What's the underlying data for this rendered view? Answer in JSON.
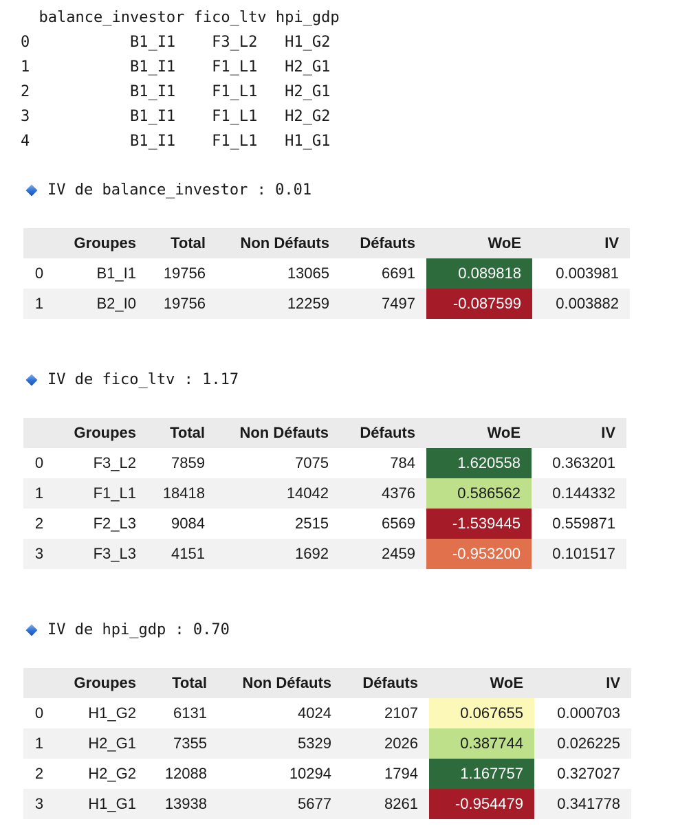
{
  "df_head": {
    "columns": [
      "balance_investor",
      "fico_ltv",
      "hpi_gdp"
    ],
    "rows": [
      {
        "index": "0",
        "values": [
          "B1_I1",
          "F3_L2",
          "H1_G2"
        ]
      },
      {
        "index": "1",
        "values": [
          "B1_I1",
          "F1_L1",
          "H2_G1"
        ]
      },
      {
        "index": "2",
        "values": [
          "B1_I1",
          "F1_L1",
          "H2_G1"
        ]
      },
      {
        "index": "3",
        "values": [
          "B1_I1",
          "F1_L1",
          "H2_G2"
        ]
      },
      {
        "index": "4",
        "values": [
          "B1_I1",
          "F1_L1",
          "H1_G1"
        ]
      }
    ]
  },
  "colors": {
    "dark_green": "#2e6b3c",
    "light_green": "#bfe08a",
    "pale_yellow": "#fcf8b8",
    "dark_red": "#a51c28",
    "orange": "#e0714c"
  },
  "sections": [
    {
      "iv_text": "IV de balance_investor : 0.01",
      "headers": [
        "",
        "Groupes",
        "Total",
        "Non Défauts",
        "Défauts",
        "WoE",
        "IV"
      ],
      "rows": [
        {
          "idx": "0",
          "groupe": "B1_I1",
          "total": "19756",
          "non_defauts": "13065",
          "defauts": "6691",
          "woe": "0.089818",
          "iv": "0.003981",
          "woe_color": "#2e6b3c",
          "woe_dark_text": false
        },
        {
          "idx": "1",
          "groupe": "B2_I0",
          "total": "19756",
          "non_defauts": "12259",
          "defauts": "7497",
          "woe": "-0.087599",
          "iv": "0.003882",
          "woe_color": "#a51c28",
          "woe_dark_text": false
        }
      ]
    },
    {
      "iv_text": "IV de fico_ltv : 1.17",
      "headers": [
        "",
        "Groupes",
        "Total",
        "Non Défauts",
        "Défauts",
        "WoE",
        "IV"
      ],
      "rows": [
        {
          "idx": "0",
          "groupe": "F3_L2",
          "total": "7859",
          "non_defauts": "7075",
          "defauts": "784",
          "woe": "1.620558",
          "iv": "0.363201",
          "woe_color": "#2e6b3c",
          "woe_dark_text": false
        },
        {
          "idx": "1",
          "groupe": "F1_L1",
          "total": "18418",
          "non_defauts": "14042",
          "defauts": "4376",
          "woe": "0.586562",
          "iv": "0.144332",
          "woe_color": "#bfe08a",
          "woe_dark_text": true
        },
        {
          "idx": "2",
          "groupe": "F2_L3",
          "total": "9084",
          "non_defauts": "2515",
          "defauts": "6569",
          "woe": "-1.539445",
          "iv": "0.559871",
          "woe_color": "#a51c28",
          "woe_dark_text": false
        },
        {
          "idx": "3",
          "groupe": "F3_L3",
          "total": "4151",
          "non_defauts": "1692",
          "defauts": "2459",
          "woe": "-0.953200",
          "iv": "0.101517",
          "woe_color": "#e0714c",
          "woe_dark_text": false
        }
      ]
    },
    {
      "iv_text": "IV de hpi_gdp : 0.70",
      "headers": [
        "",
        "Groupes",
        "Total",
        "Non Défauts",
        "Défauts",
        "WoE",
        "IV"
      ],
      "rows": [
        {
          "idx": "0",
          "groupe": "H1_G2",
          "total": "6131",
          "non_defauts": "4024",
          "defauts": "2107",
          "woe": "0.067655",
          "iv": "0.000703",
          "woe_color": "#fcf8b8",
          "woe_dark_text": true
        },
        {
          "idx": "1",
          "groupe": "H2_G1",
          "total": "7355",
          "non_defauts": "5329",
          "defauts": "2026",
          "woe": "0.387744",
          "iv": "0.026225",
          "woe_color": "#bfe08a",
          "woe_dark_text": true
        },
        {
          "idx": "2",
          "groupe": "H2_G2",
          "total": "12088",
          "non_defauts": "10294",
          "defauts": "1794",
          "woe": "1.167757",
          "iv": "0.327027",
          "woe_color": "#2e6b3c",
          "woe_dark_text": false
        },
        {
          "idx": "3",
          "groupe": "H1_G1",
          "total": "13938",
          "non_defauts": "5677",
          "defauts": "8261",
          "woe": "-0.954479",
          "iv": "0.341778",
          "woe_color": "#a51c28",
          "woe_dark_text": false
        }
      ]
    }
  ]
}
